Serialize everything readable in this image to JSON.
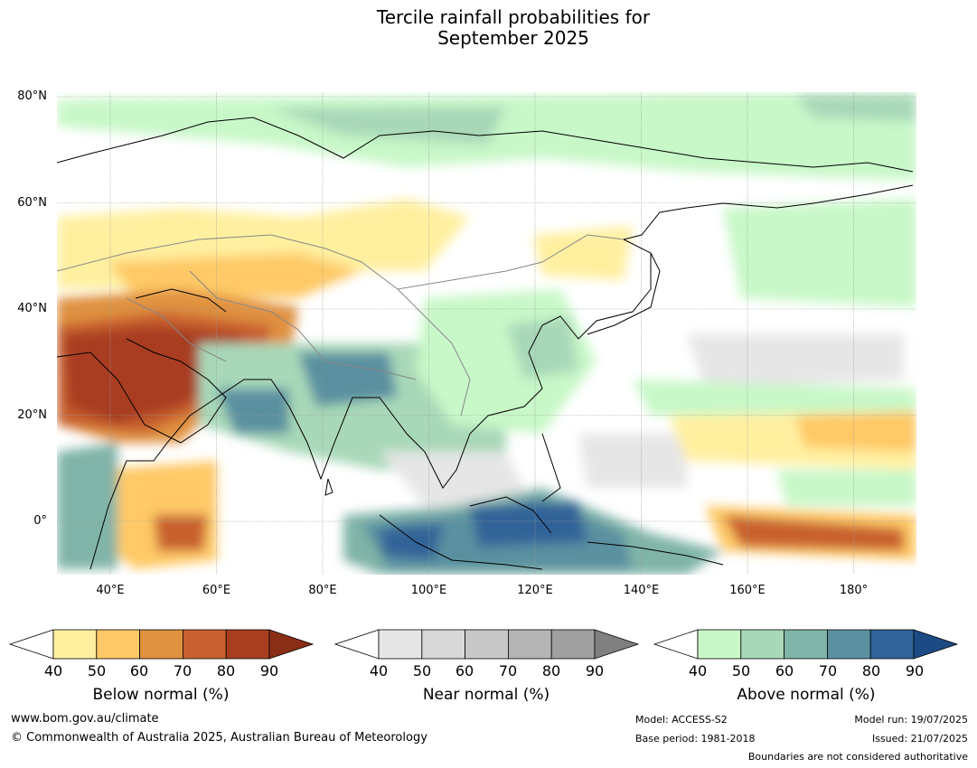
{
  "title_lines": [
    "Tercile rainfall probabilities for",
    "September 2025"
  ],
  "map": {
    "lat_labels": [
      "80°N",
      "60°N",
      "40°N",
      "20°N",
      "0°"
    ],
    "lat_values": [
      80,
      60,
      40,
      20,
      0
    ],
    "lon_labels": [
      "40°E",
      "60°E",
      "80°E",
      "100°E",
      "120°E",
      "140°E",
      "160°E",
      "180°"
    ],
    "lon_values": [
      40,
      60,
      80,
      100,
      120,
      140,
      160,
      180
    ],
    "extent": {
      "lon_min": 30,
      "lon_max": 192,
      "lat_min": -10,
      "lat_max": 81
    }
  },
  "legends": [
    {
      "title": "Below normal (%)",
      "ticks": [
        "40",
        "50",
        "60",
        "70",
        "80",
        "90"
      ],
      "colors": [
        "#fff0a0",
        "#fec966",
        "#e0913f",
        "#c8602f",
        "#a83e20"
      ],
      "extend_color": "#8a2e16"
    },
    {
      "title": "Near normal (%)",
      "ticks": [
        "40",
        "50",
        "60",
        "70",
        "80",
        "90"
      ],
      "colors": [
        "#e6e6e6",
        "#d8d8d8",
        "#c8c8c8",
        "#b4b4b4",
        "#a0a0a0"
      ],
      "extend_color": "#808080"
    },
    {
      "title": "Above normal (%)",
      "ticks": [
        "40",
        "50",
        "60",
        "70",
        "80",
        "90"
      ],
      "colors": [
        "#c8f8c8",
        "#a8d8b8",
        "#80b4a8",
        "#5a90a0",
        "#306498"
      ],
      "extend_color": "#1c4a84"
    }
  ],
  "footer": {
    "website": "www.bom.gov.au/climate",
    "copyright": "© Commonwealth of Australia 2025, Australian Bureau of Meteorology",
    "model": "Model: ACCESS-S2",
    "base_period": "Base period: 1981-2018",
    "model_run": "Model run: 19/07/2025",
    "issued": "Issued: 21/07/2025",
    "disclaimer": "Boundaries are not considered authoritative"
  }
}
